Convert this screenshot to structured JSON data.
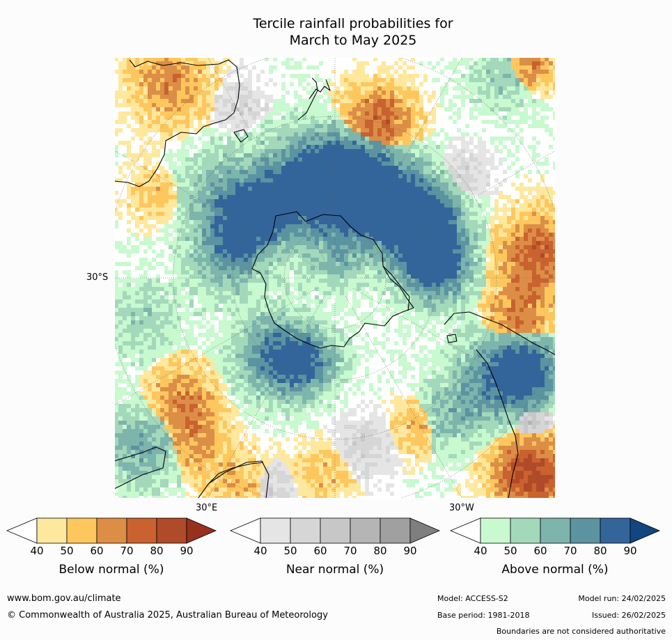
{
  "title": {
    "line1": "Tercile rainfall probabilities for",
    "line2": "March to May 2025"
  },
  "map": {
    "projection": "south-polar stereographic",
    "lat_label": "30°S",
    "lon_label_left": "30°E",
    "lon_label_right": "30°W"
  },
  "colorbars": [
    {
      "label": "Below normal (%)",
      "ticks": [
        "40",
        "50",
        "60",
        "70",
        "80",
        "90"
      ],
      "colors": [
        "#ffffff",
        "#fee89d",
        "#fec75e",
        "#dc8e47",
        "#c9622f",
        "#af4b28",
        "#97311d"
      ]
    },
    {
      "label": "Near normal (%)",
      "ticks": [
        "40",
        "50",
        "60",
        "70",
        "80",
        "90"
      ],
      "colors": [
        "#ffffff",
        "#e5e5e5",
        "#d6d6d6",
        "#c7c7c7",
        "#b5b5b5",
        "#a0a0a0",
        "#7f7f7f"
      ]
    },
    {
      "label": "Above normal (%)",
      "ticks": [
        "40",
        "50",
        "60",
        "70",
        "80",
        "90"
      ],
      "colors": [
        "#ffffff",
        "#c8f9cf",
        "#a4d8bb",
        "#7db5ac",
        "#5b93a1",
        "#33659b",
        "#114680"
      ]
    }
  ],
  "footer": {
    "website": "www.bom.gov.au/climate",
    "copyright": "© Commonwealth of Australia 2025, Australian Bureau of Meteorology",
    "model": "Model: ACCESS-S2",
    "base_period": "Base period: 1981-2018",
    "model_run": "Model run: 24/02/2025",
    "issued": "Issued: 26/02/2025",
    "disclaimer": "Boundaries are not considered authoritative"
  }
}
